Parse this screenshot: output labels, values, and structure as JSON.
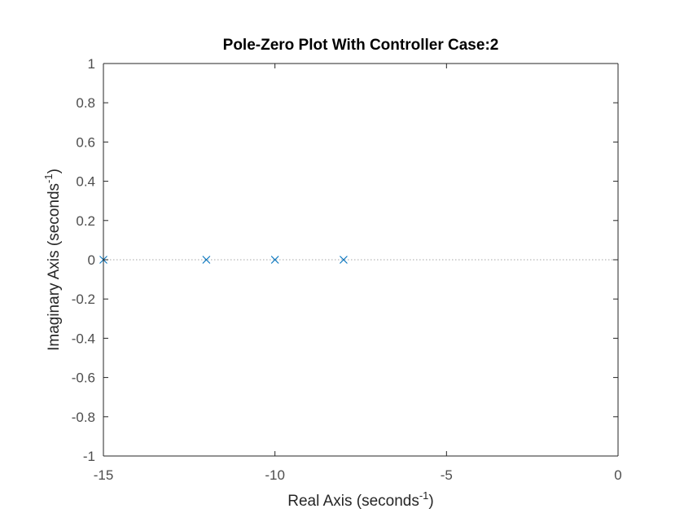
{
  "chart_data": {
    "type": "scatter",
    "title": "Pole-Zero Plot With Controller Case:2",
    "xlabel": {
      "text": "Real Axis (seconds",
      "superscript": "-1",
      "suffix": ")"
    },
    "ylabel": {
      "text": "Imaginary Axis (seconds",
      "superscript": "-1",
      "suffix": ")"
    },
    "xlim": [
      -15,
      0
    ],
    "ylim": [
      -1,
      1
    ],
    "xticks": [
      -15,
      -10,
      -5,
      0
    ],
    "xtick_labels": [
      "-15",
      "-10",
      "-5",
      "0"
    ],
    "yticks": [
      -1,
      -0.8,
      -0.6,
      -0.4,
      -0.2,
      0,
      0.2,
      0.4,
      0.6,
      0.8,
      1
    ],
    "ytick_labels": [
      "-1",
      "-0.8",
      "-0.6",
      "-0.4",
      "-0.2",
      "0",
      "0.2",
      "0.4",
      "0.6",
      "0.8",
      "1"
    ],
    "grid": false,
    "reference_line": {
      "y": 0,
      "style": "dotted"
    },
    "series": [
      {
        "marker": "x",
        "color": "#0072bd",
        "points": [
          {
            "x": -15,
            "y": 0
          },
          {
            "x": -12,
            "y": 0
          },
          {
            "x": -10,
            "y": 0
          },
          {
            "x": -8,
            "y": 0
          }
        ]
      }
    ]
  }
}
